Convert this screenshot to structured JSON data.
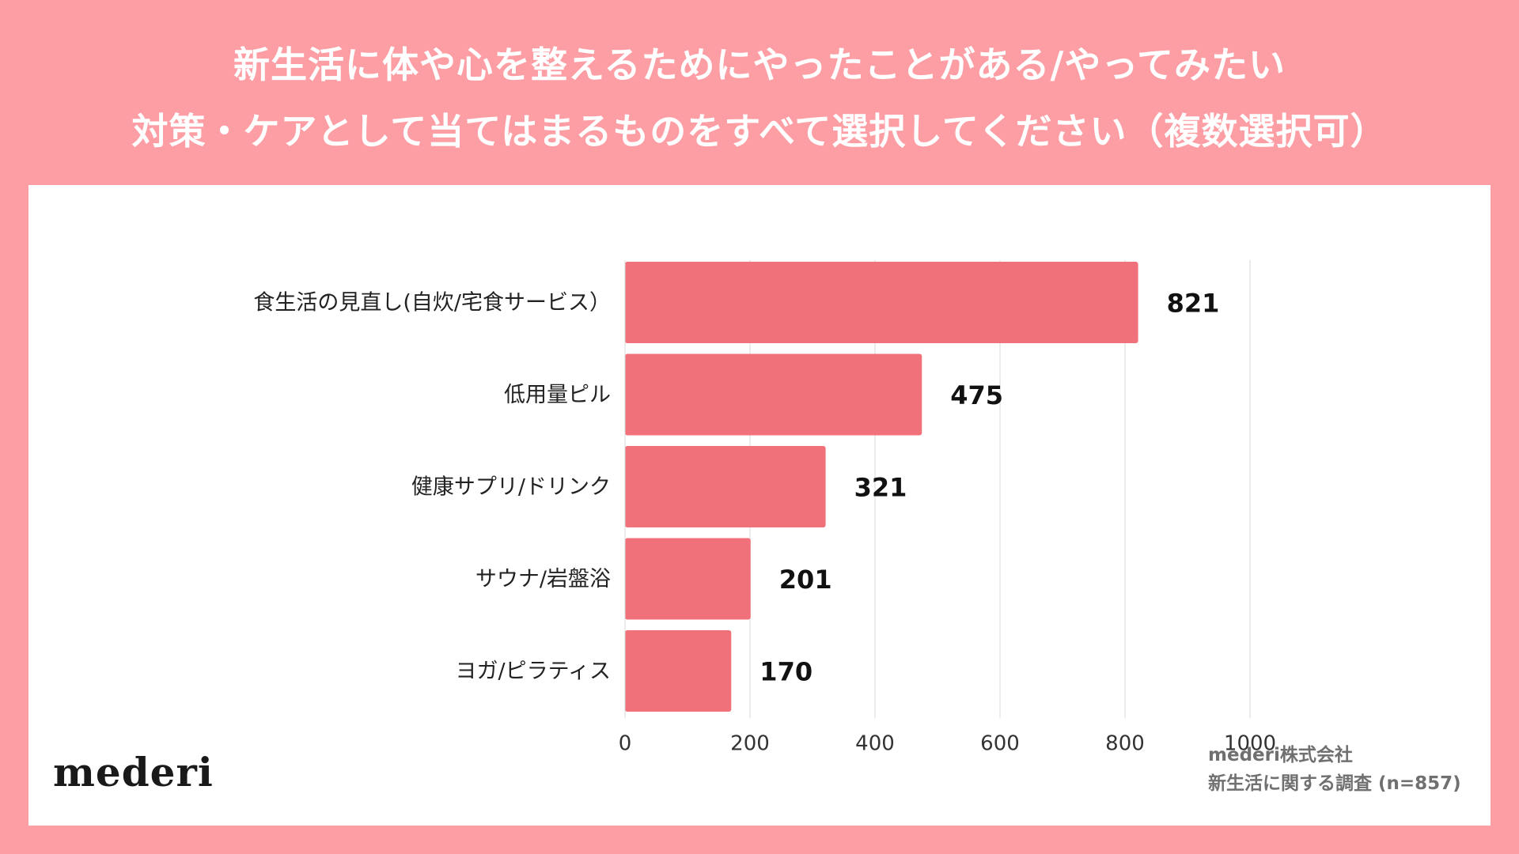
{
  "title": {
    "line1": "新生活に体や心を整えるためにやったことがある/やってみたい",
    "line2": "対策・ケアとして当てはまるものをすべて選択してください（複数選択可）"
  },
  "logo": "mederi",
  "credit": {
    "line1": "mederi株式会社",
    "line2": "新生活に関する調査 (n=857)"
  },
  "colors": {
    "background": "#fd9ea5",
    "panel": "#ffffff",
    "bar": "#f0717a",
    "grid": "#d9d9d9"
  },
  "chart_data": {
    "type": "bar",
    "orientation": "horizontal",
    "categories": [
      "食生活の見直し(自炊/宅食サービス）",
      "低用量ピル",
      "健康サプリ/ドリンク",
      "サウナ/岩盤浴",
      "ヨガ/ピラティス"
    ],
    "values": [
      821,
      475,
      321,
      201,
      170
    ],
    "xlim": [
      0,
      1000
    ],
    "xticks": [
      "0",
      "200",
      "400",
      "600",
      "800",
      "1000"
    ],
    "grid": true,
    "data_labels": true
  }
}
